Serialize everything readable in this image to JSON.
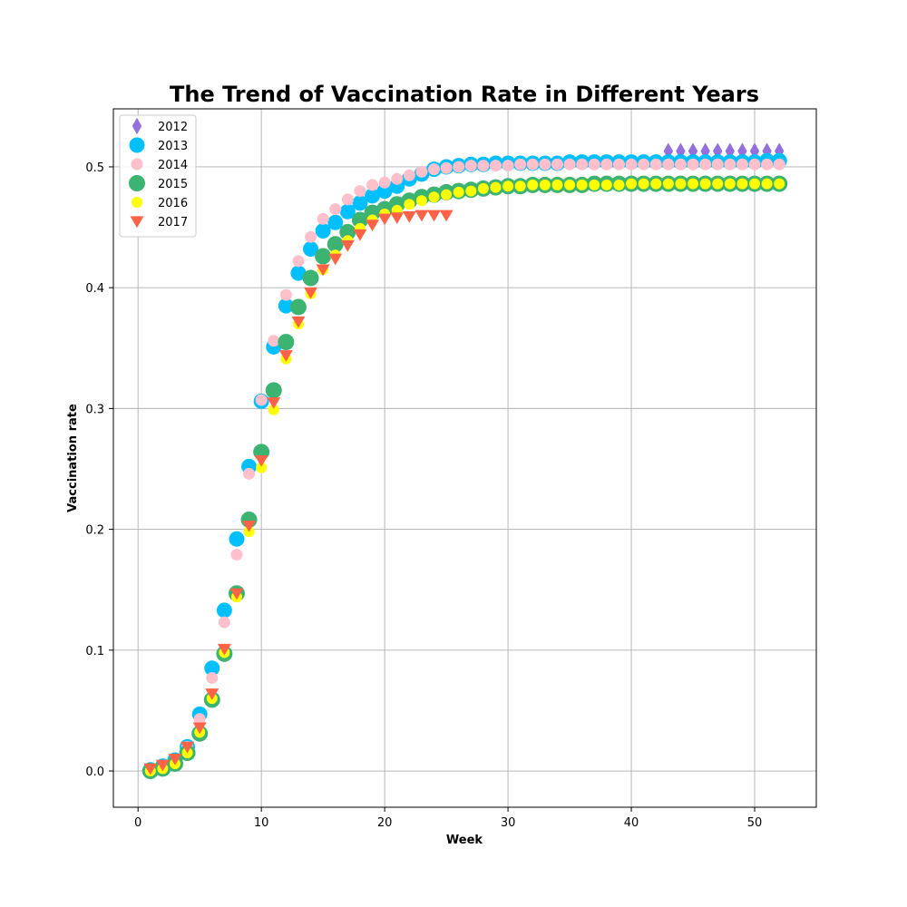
{
  "chart_data": {
    "type": "scatter",
    "title": "The Trend of Vaccination Rate in Different Years",
    "xlabel": "Week",
    "ylabel": "Vaccination rate",
    "xlim": [
      -2,
      55
    ],
    "ylim": [
      -0.03,
      0.548
    ],
    "xticks": [
      0,
      10,
      20,
      30,
      40,
      50
    ],
    "xtick_labels": [
      "0",
      "10",
      "20",
      "30",
      "40",
      "50"
    ],
    "yticks": [
      0.0,
      0.1,
      0.2,
      0.3,
      0.4,
      0.5
    ],
    "ytick_labels": [
      "0.0",
      "0.1",
      "0.2",
      "0.3",
      "0.4",
      "0.5"
    ],
    "grid": true,
    "legend_position": "top-left",
    "series": [
      {
        "name": "2012",
        "color": "#9370DB",
        "marker": "thin_diamond",
        "x": [
          43,
          44,
          45,
          46,
          47,
          48,
          49,
          50,
          51,
          52
        ],
        "y": [
          0.513,
          0.513,
          0.513,
          0.513,
          0.513,
          0.513,
          0.513,
          0.513,
          0.513,
          0.513
        ]
      },
      {
        "name": "2013",
        "color": "#00BFFF",
        "marker": "circle",
        "x": [
          1,
          2,
          3,
          4,
          5,
          6,
          7,
          8,
          9,
          10,
          11,
          12,
          13,
          14,
          15,
          16,
          17,
          18,
          19,
          20,
          21,
          22,
          23,
          24,
          25,
          26,
          27,
          28,
          29,
          30,
          31,
          32,
          33,
          34,
          35,
          36,
          37,
          38,
          39,
          40,
          41,
          42,
          43,
          44,
          45,
          46,
          47,
          48,
          49,
          50,
          51,
          52
        ],
        "y": [
          0.001,
          0.004,
          0.009,
          0.02,
          0.047,
          0.085,
          0.133,
          0.192,
          0.252,
          0.306,
          0.351,
          0.385,
          0.412,
          0.432,
          0.447,
          0.454,
          0.463,
          0.47,
          0.476,
          0.48,
          0.484,
          0.49,
          0.494,
          0.498,
          0.5,
          0.501,
          0.502,
          0.502,
          0.503,
          0.503,
          0.503,
          0.503,
          0.503,
          0.503,
          0.504,
          0.504,
          0.504,
          0.504,
          0.504,
          0.504,
          0.504,
          0.504,
          0.504,
          0.504,
          0.504,
          0.504,
          0.504,
          0.504,
          0.504,
          0.504,
          0.505,
          0.505
        ]
      },
      {
        "name": "2014",
        "color": "#FFC0CB",
        "marker": "circle",
        "x": [
          1,
          2,
          3,
          4,
          5,
          6,
          7,
          8,
          9,
          10,
          11,
          12,
          13,
          14,
          15,
          16,
          17,
          18,
          19,
          20,
          21,
          22,
          23,
          24,
          25,
          26,
          27,
          28,
          29,
          30,
          31,
          32,
          33,
          34,
          35,
          36,
          37,
          38,
          39,
          40,
          41,
          42,
          43,
          44,
          45,
          46,
          47,
          48,
          49,
          50,
          51,
          52
        ],
        "y": [
          0.001,
          0.004,
          0.008,
          0.02,
          0.043,
          0.077,
          0.123,
          0.179,
          0.246,
          0.307,
          0.356,
          0.394,
          0.422,
          0.442,
          0.457,
          0.465,
          0.473,
          0.48,
          0.485,
          0.487,
          0.49,
          0.493,
          0.496,
          0.498,
          0.499,
          0.5,
          0.501,
          0.501,
          0.501,
          0.501,
          0.502,
          0.502,
          0.502,
          0.502,
          0.502,
          0.502,
          0.502,
          0.502,
          0.502,
          0.502,
          0.502,
          0.502,
          0.502,
          0.502,
          0.502,
          0.502,
          0.502,
          0.502,
          0.502,
          0.502,
          0.502,
          0.502
        ]
      },
      {
        "name": "2015",
        "color": "#3CB371",
        "marker": "circle",
        "x": [
          1,
          2,
          3,
          4,
          5,
          6,
          7,
          8,
          9,
          10,
          11,
          12,
          13,
          14,
          15,
          16,
          17,
          18,
          19,
          20,
          21,
          22,
          23,
          24,
          25,
          26,
          27,
          28,
          29,
          30,
          31,
          32,
          33,
          34,
          35,
          36,
          37,
          38,
          39,
          40,
          41,
          42,
          43,
          44,
          45,
          46,
          47,
          48,
          49,
          50,
          51,
          52
        ],
        "y": [
          0.0,
          0.002,
          0.006,
          0.015,
          0.031,
          0.059,
          0.097,
          0.147,
          0.208,
          0.264,
          0.315,
          0.355,
          0.384,
          0.408,
          0.426,
          0.436,
          0.446,
          0.456,
          0.462,
          0.465,
          0.469,
          0.472,
          0.475,
          0.477,
          0.479,
          0.48,
          0.481,
          0.482,
          0.483,
          0.484,
          0.484,
          0.485,
          0.485,
          0.485,
          0.485,
          0.485,
          0.486,
          0.486,
          0.486,
          0.486,
          0.486,
          0.486,
          0.486,
          0.486,
          0.486,
          0.486,
          0.486,
          0.486,
          0.486,
          0.486,
          0.486,
          0.486
        ]
      },
      {
        "name": "2016",
        "color": "#FFFF00",
        "marker": "circle",
        "x": [
          1,
          2,
          3,
          4,
          5,
          6,
          7,
          8,
          9,
          10,
          11,
          12,
          13,
          14,
          15,
          16,
          17,
          18,
          19,
          20,
          21,
          22,
          23,
          24,
          25,
          26,
          27,
          28,
          29,
          30,
          31,
          32,
          33,
          34,
          35,
          36,
          37,
          38,
          39,
          40,
          41,
          42,
          43,
          44,
          45,
          46,
          47,
          48,
          49,
          50,
          51,
          52
        ],
        "y": [
          0.0,
          0.002,
          0.006,
          0.015,
          0.032,
          0.06,
          0.098,
          0.144,
          0.198,
          0.251,
          0.299,
          0.341,
          0.37,
          0.395,
          0.415,
          0.427,
          0.439,
          0.449,
          0.456,
          0.461,
          0.464,
          0.469,
          0.472,
          0.475,
          0.477,
          0.479,
          0.48,
          0.482,
          0.483,
          0.484,
          0.484,
          0.485,
          0.485,
          0.485,
          0.485,
          0.485,
          0.485,
          0.485,
          0.485,
          0.486,
          0.486,
          0.486,
          0.486,
          0.486,
          0.486,
          0.486,
          0.486,
          0.486,
          0.486,
          0.486,
          0.486,
          0.486
        ]
      },
      {
        "name": "2017",
        "color": "#FF6347",
        "marker": "triangle_down",
        "x": [
          1,
          2,
          3,
          4,
          5,
          6,
          7,
          8,
          9,
          10,
          11,
          12,
          13,
          14,
          15,
          16,
          17,
          18,
          19,
          20,
          21,
          22,
          23,
          24,
          25
        ],
        "y": [
          0.002,
          0.005,
          0.01,
          0.02,
          0.036,
          0.064,
          0.101,
          0.147,
          0.203,
          0.257,
          0.305,
          0.344,
          0.372,
          0.396,
          0.415,
          0.424,
          0.435,
          0.444,
          0.452,
          0.457,
          0.458,
          0.459,
          0.46,
          0.46,
          0.46
        ]
      }
    ]
  }
}
